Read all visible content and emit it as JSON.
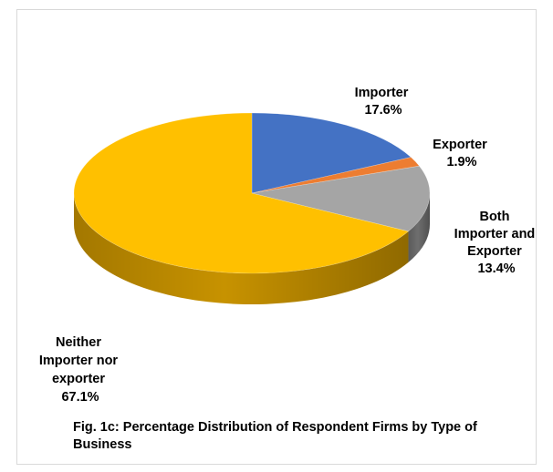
{
  "chart_data": {
    "type": "pie",
    "style": "3d",
    "title": "",
    "caption": "Fig. 1c: Percentage Distribution of Respondent Firms by Type of Business",
    "slices": [
      {
        "label_lines": [
          "Importer",
          "17.6%"
        ],
        "value": 17.6,
        "color": "#4472c4",
        "side_color": "#2f5597"
      },
      {
        "label_lines": [
          "Exporter",
          "1.9%"
        ],
        "value": 1.9,
        "color": "#ed7d31",
        "side_color": "#b55a1d"
      },
      {
        "label_lines": [
          "Both",
          "Importer and",
          "Exporter",
          "13.4%"
        ],
        "value": 13.4,
        "color": "#a5a5a5",
        "side_color": "#6e6e6e"
      },
      {
        "label_lines": [
          "Neither",
          "Importer nor",
          "exporter",
          "67.1%"
        ],
        "value": 67.1,
        "color": "#ffc000",
        "side_color": "#c79200"
      }
    ],
    "legend": "none"
  }
}
